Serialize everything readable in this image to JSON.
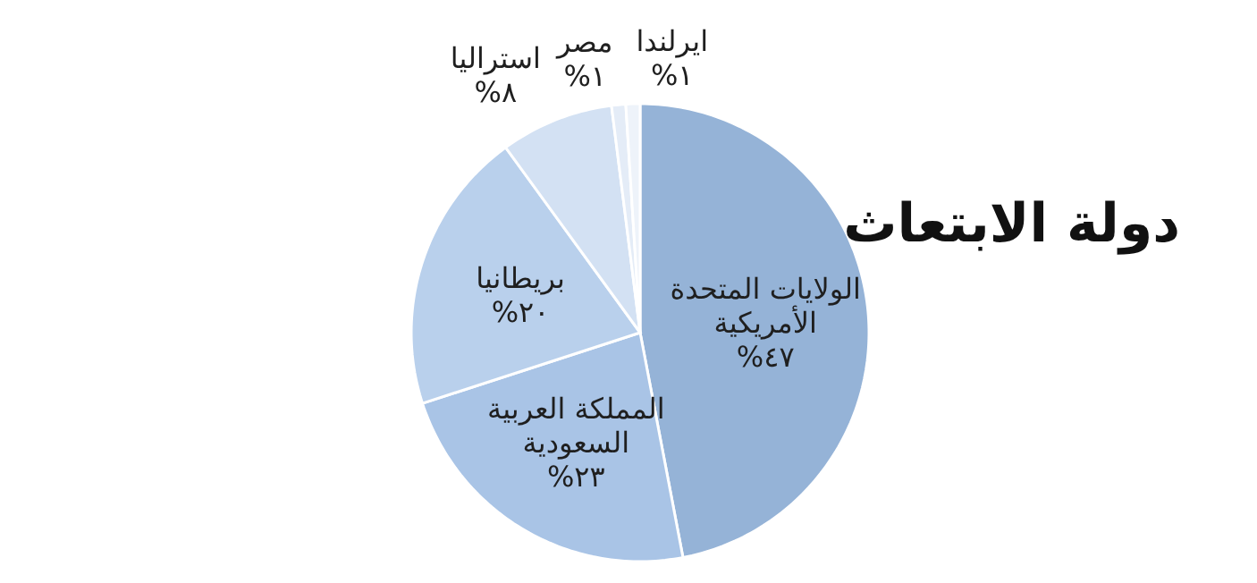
{
  "chart_data": {
    "type": "pie",
    "title": "دولة الابتعاث",
    "categories": [
      "الولايات المتحدة الأمريكية",
      "المملكة العربية السعودية",
      "بريطانيا",
      "استراليا",
      "مصر",
      "ايرلندا"
    ],
    "values": [
      47,
      23,
      20,
      8,
      1,
      1
    ],
    "value_labels": [
      "٤٧%",
      "٢٣%",
      "٢٠%",
      "٨%",
      "١%",
      "١%"
    ],
    "colors": [
      "#95b3d7",
      "#a9c4e6",
      "#b9d0ec",
      "#d3e1f3",
      "#e4ecf7",
      "#eef3fa"
    ],
    "legend": false
  }
}
